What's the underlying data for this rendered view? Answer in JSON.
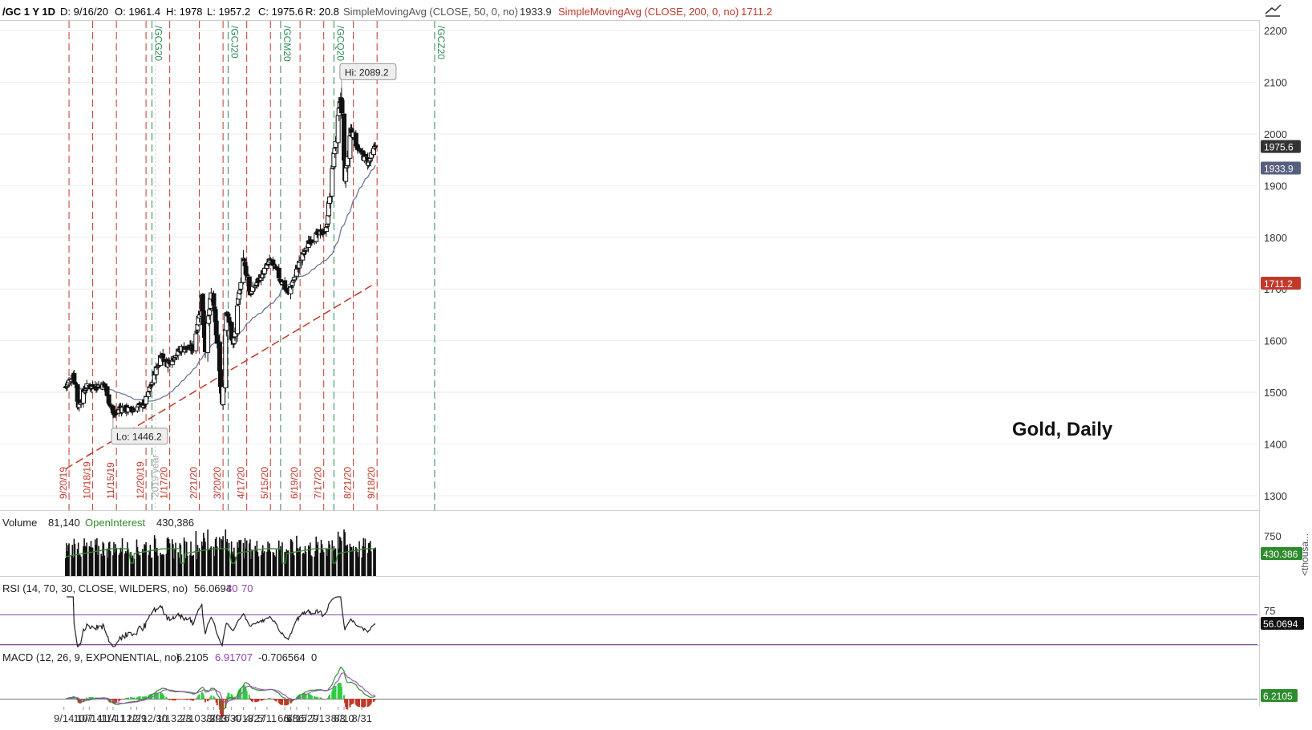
{
  "header": {
    "symbol": "/GC 1 Y 1D",
    "date": "D: 9/16/20",
    "open": "O: 1961.4",
    "high": "H: 1978",
    "low": "L: 1957.2",
    "close": "C: 1975.6",
    "range": "R: 20.8",
    "sma50_label": "SimpleMovingAvg (CLOSE, 50, 0, no)",
    "sma50_value": "1933.9",
    "sma200_label": "SimpleMovingAvg (CLOSE, 200, 0, no)",
    "sma200_value": "1711.2"
  },
  "annotation": "Gold, Daily",
  "colors": {
    "up": "#111111",
    "down": "#111111",
    "sma50": "#6b7a99",
    "sma200": "#c0392b",
    "expiry": "#2e8b57",
    "monthly": "#c0392b",
    "volume_oi": "#2e8b2e",
    "rsi": "#222222",
    "rsi_bands": "#8e44ad",
    "macd_pos": "#2ecc40",
    "macd_neg": "#c0392b"
  },
  "chart_data": {
    "type": "candlestick",
    "price_axis": {
      "ylim": [
        1270,
        2250
      ],
      "ticks": [
        "2200",
        "2100",
        "2000",
        "1900",
        "1800",
        "1700",
        "1600",
        "1500",
        "1400",
        "1300"
      ],
      "current_close_tag": "1975.6",
      "sma50_tag": "1933.9",
      "sma200_tag": "1711.2"
    },
    "hi_label": "Hi: 2089.2",
    "lo_label": "Lo: 1446.2",
    "month_markers": [
      "9/20/19",
      "10/18/19",
      "11/15/19",
      "12/20/19",
      "1/17/20",
      "2/21/20",
      "3/20/20",
      "4/17/20",
      "5/15/20",
      "6/19/20",
      "7/17/20",
      "8/21/20",
      "9/18/20"
    ],
    "year_marker": "2019 year",
    "contract_markers": [
      "/GCG20",
      "/GCJ20",
      "/GCM20",
      "/GCQ20",
      "/GCZ20"
    ],
    "x_ticks": [
      "10/7",
      "10/14",
      "11/4",
      "11/11",
      "12/2",
      "12/9",
      "12/30",
      "1/13",
      "2/3",
      "2/10",
      "3/2",
      "3/9",
      "3/16",
      "3/30",
      "4/13",
      "4/27",
      "5/11",
      "6/1",
      "6/8",
      "6/15",
      "6/29",
      "7/13",
      "8/3",
      "8/10",
      "8/31",
      "9/14"
    ],
    "price_anchors": [
      {
        "x": "9/16/19",
        "close": 1510
      },
      {
        "x": "9/25/19",
        "close": 1535
      },
      {
        "x": "10/1/19",
        "close": 1475
      },
      {
        "x": "10/10/19",
        "close": 1510
      },
      {
        "x": "10/31/19",
        "close": 1515
      },
      {
        "x": "11/12/19",
        "close": 1455
      },
      {
        "x": "11/19/19",
        "close": 1470
      },
      {
        "x": "12/3/19",
        "close": 1465
      },
      {
        "x": "12/19/19",
        "close": 1480
      },
      {
        "x": "1/7/20",
        "close": 1575
      },
      {
        "x": "1/13/20",
        "close": 1555
      },
      {
        "x": "1/31/20",
        "close": 1585
      },
      {
        "x": "2/14/20",
        "close": 1585
      },
      {
        "x": "2/24/20",
        "close": 1685
      },
      {
        "x": "2/28/20",
        "close": 1585
      },
      {
        "x": "3/6/20",
        "close": 1690
      },
      {
        "x": "3/9/20",
        "close": 1670
      },
      {
        "x": "3/19/20",
        "close": 1480
      },
      {
        "x": "3/24/20",
        "close": 1660
      },
      {
        "x": "4/1/20",
        "close": 1590
      },
      {
        "x": "4/13/20",
        "close": 1760
      },
      {
        "x": "4/21/20",
        "close": 1690
      },
      {
        "x": "5/15/20",
        "close": 1755
      },
      {
        "x": "6/5/20",
        "close": 1690
      },
      {
        "x": "6/19/20",
        "close": 1755
      },
      {
        "x": "7/1/20",
        "close": 1795
      },
      {
        "x": "7/20/20",
        "close": 1815
      },
      {
        "x": "7/30/20",
        "close": 1975
      },
      {
        "x": "8/6/20",
        "close": 2070
      },
      {
        "x": "8/11/20",
        "close": 1915
      },
      {
        "x": "8/18/20",
        "close": 2010
      },
      {
        "x": "8/28/20",
        "close": 1965
      },
      {
        "x": "9/8/20",
        "close": 1945
      },
      {
        "x": "9/16/20",
        "close": 1975.6
      }
    ],
    "volume_panel": {
      "label": "Volume",
      "value": "81,140",
      "oi_label": "OpenInterest",
      "oi_value": "430,386",
      "axis_tick": "750",
      "oi_tag": "430.386",
      "unit_label": "<thousa..."
    },
    "rsi_panel": {
      "label": "RSI (14, 70, 30, CLOSE, WILDERS, no)",
      "value": "56.0694",
      "lower": "30",
      "upper": "70",
      "axis_tick": "75",
      "tag": "56.0694"
    },
    "macd_panel": {
      "label": "MACD (12, 26, 9, EXPONENTIAL, no)",
      "value": "6.2105",
      "avg": "6.91707",
      "diff": "-0.706564",
      "zero": "0",
      "tag": "6.2105"
    }
  }
}
